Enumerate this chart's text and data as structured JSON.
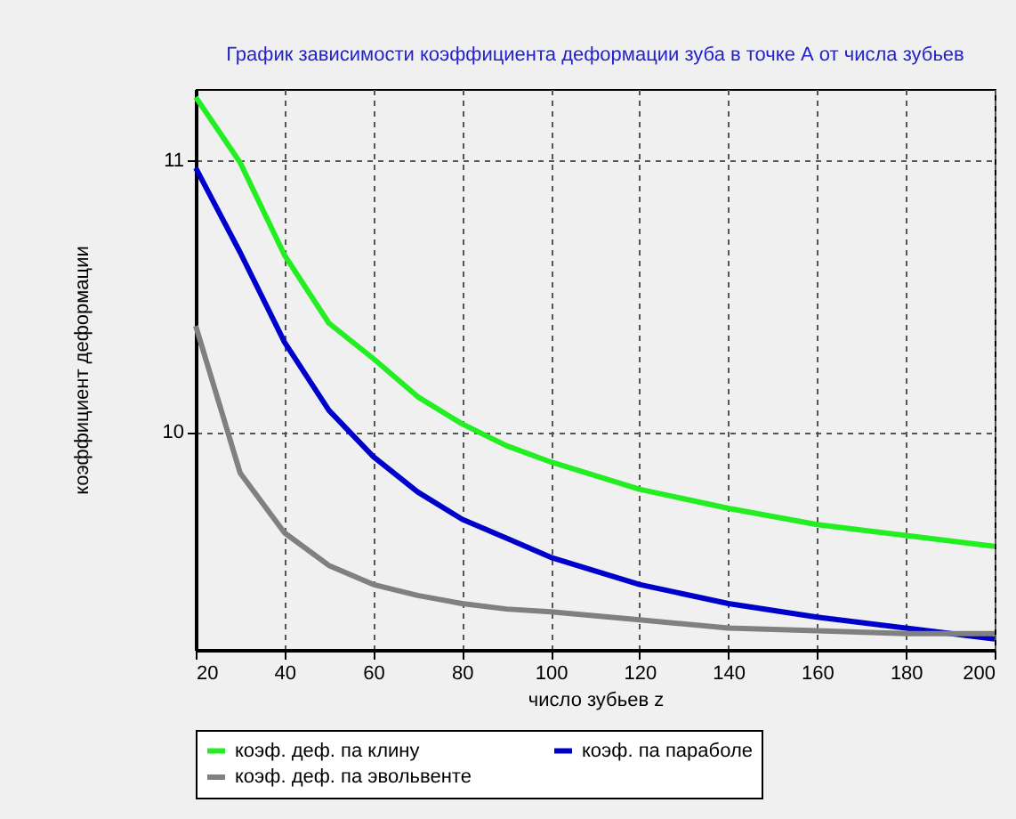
{
  "chart_data": {
    "type": "line",
    "title": "График зависимости коэффициента деформации зуба в точке А от числа зубьев",
    "xlabel": "число зубьев z",
    "ylabel": "коэффициент деформации",
    "x": [
      20,
      30,
      40,
      50,
      60,
      70,
      80,
      90,
      100,
      120,
      140,
      160,
      180,
      200
    ],
    "series": [
      {
        "name": "коэф. деф. па клину",
        "color": "#22ee22",
        "values": [
          11.23,
          10.99,
          10.65,
          10.4,
          10.27,
          10.13,
          10.03,
          9.95,
          9.89,
          9.79,
          9.72,
          9.66,
          9.62,
          9.58
        ]
      },
      {
        "name": "коэф. па параболе",
        "color": "#0000cc",
        "values": [
          10.97,
          10.66,
          10.33,
          10.08,
          9.91,
          9.78,
          9.68,
          9.61,
          9.54,
          9.44,
          9.37,
          9.32,
          9.28,
          9.24
        ]
      },
      {
        "name": "коэф. деф. па эвольвенте",
        "color": "#808080",
        "values": [
          10.39,
          9.85,
          9.63,
          9.51,
          9.44,
          9.4,
          9.37,
          9.35,
          9.34,
          9.31,
          9.28,
          9.27,
          9.26,
          9.26
        ]
      }
    ],
    "xlim": [
      20,
      200
    ],
    "xticks": [
      20,
      40,
      60,
      80,
      100,
      120,
      140,
      160,
      180,
      200
    ],
    "ylim": [
      9.2,
      11.26
    ],
    "yticks": [
      10,
      11
    ],
    "grid": true,
    "legend": "bottom",
    "line_style": "solid"
  }
}
